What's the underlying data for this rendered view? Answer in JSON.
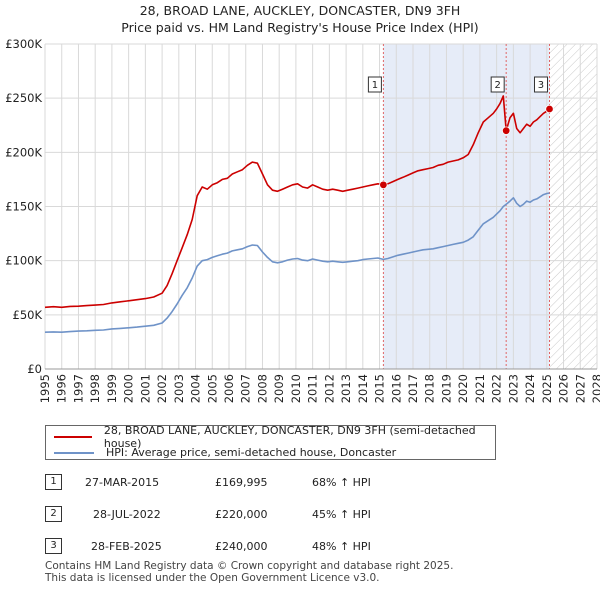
{
  "chart_data": {
    "type": "line",
    "title": "28, BROAD LANE, AUCKLEY, DONCASTER, DN9 3FH",
    "subtitle": "Price paid vs. HM Land Registry's House Price Index (HPI)",
    "xlabel": "",
    "ylabel": "",
    "xlim": [
      1995,
      2028
    ],
    "ylim": [
      0,
      300000
    ],
    "x_ticks": [
      1995,
      1996,
      1997,
      1998,
      1999,
      2000,
      2001,
      2002,
      2003,
      2004,
      2005,
      2006,
      2007,
      2008,
      2009,
      2010,
      2011,
      2012,
      2013,
      2014,
      2015,
      2016,
      2017,
      2018,
      2019,
      2020,
      2021,
      2022,
      2023,
      2024,
      2025,
      2026,
      2027,
      2028
    ],
    "x_tick_labels": [
      "1995",
      "1996",
      "1997",
      "1998",
      "1999",
      "2000",
      "2001",
      "2002",
      "2003",
      "2004",
      "2005",
      "2006",
      "2007",
      "2008",
      "2009",
      "2010",
      "2011",
      "2012",
      "2013",
      "2014",
      "2015",
      "2016",
      "2017",
      "2018",
      "2019",
      "2020",
      "2021",
      "2022",
      "2023",
      "2024",
      "2025",
      "2026",
      "2027",
      "2028"
    ],
    "y_ticks": [
      0,
      50000,
      100000,
      150000,
      200000,
      250000,
      300000
    ],
    "y_tick_labels": [
      "£0",
      "£50K",
      "£100K",
      "£150K",
      "£200K",
      "£250K",
      "£300K"
    ],
    "grid": true,
    "projection_start": 2025.17,
    "series": [
      {
        "name": "28, BROAD LANE, AUCKLEY, DONCASTER, DN9 3FH (semi-detached house)",
        "color": "#cc0000",
        "x": [
          1995.0,
          1995.5,
          1996.0,
          1996.5,
          1997.0,
          1997.5,
          1998.0,
          1998.5,
          1999.0,
          1999.5,
          2000.0,
          2000.5,
          2001.0,
          2001.5,
          2002.0,
          2002.3,
          2002.6,
          2002.9,
          2003.2,
          2003.5,
          2003.8,
          2004.1,
          2004.4,
          2004.7,
          2005.0,
          2005.3,
          2005.6,
          2005.9,
          2006.2,
          2006.5,
          2006.8,
          2007.1,
          2007.4,
          2007.7,
          2008.0,
          2008.3,
          2008.6,
          2008.9,
          2009.2,
          2009.5,
          2009.8,
          2010.1,
          2010.4,
          2010.7,
          2011.0,
          2011.3,
          2011.6,
          2011.9,
          2012.2,
          2012.5,
          2012.8,
          2013.1,
          2013.4,
          2013.7,
          2014.0,
          2014.3,
          2014.6,
          2014.9,
          2015.23,
          2015.5,
          2015.8,
          2016.1,
          2016.4,
          2016.7,
          2017.0,
          2017.3,
          2017.6,
          2017.9,
          2018.2,
          2018.5,
          2018.8,
          2019.1,
          2019.4,
          2019.7,
          2020.0,
          2020.3,
          2020.6,
          2020.9,
          2021.2,
          2021.5,
          2021.8,
          2022.0,
          2022.2,
          2022.4,
          2022.57,
          2022.8,
          2023.0,
          2023.2,
          2023.4,
          2023.6,
          2023.8,
          2024.0,
          2024.2,
          2024.4,
          2024.6,
          2024.8,
          2025.0,
          2025.16
        ],
        "values": [
          57000,
          57500,
          57000,
          57800,
          58000,
          58500,
          59000,
          59500,
          61000,
          62000,
          63000,
          64000,
          65000,
          66500,
          70000,
          77000,
          88000,
          100000,
          112000,
          124000,
          138000,
          160000,
          168000,
          166000,
          170000,
          172000,
          175000,
          176000,
          180000,
          182000,
          184000,
          188000,
          191000,
          190000,
          180000,
          170000,
          165000,
          164000,
          166000,
          168000,
          170000,
          171000,
          168000,
          167000,
          170000,
          168000,
          166000,
          165000,
          166000,
          165000,
          164000,
          165000,
          166000,
          167000,
          168000,
          169000,
          170000,
          171000,
          169995,
          171000,
          173000,
          175000,
          177000,
          179000,
          181000,
          183000,
          184000,
          185000,
          186000,
          188000,
          189000,
          191000,
          192000,
          193000,
          195000,
          198000,
          207000,
          218000,
          228000,
          232000,
          236000,
          240000,
          245000,
          252000,
          220000,
          232000,
          236000,
          222000,
          218000,
          222000,
          226000,
          224000,
          228000,
          230000,
          233000,
          236000,
          238000,
          240000
        ]
      },
      {
        "name": "HPI: Average price, semi-detached house, Doncaster",
        "color": "#6f93c8",
        "x": [
          1995.0,
          1995.5,
          1996.0,
          1996.5,
          1997.0,
          1997.5,
          1998.0,
          1998.5,
          1999.0,
          1999.5,
          2000.0,
          2000.5,
          2001.0,
          2001.5,
          2002.0,
          2002.3,
          2002.6,
          2002.9,
          2003.2,
          2003.5,
          2003.8,
          2004.1,
          2004.4,
          2004.7,
          2005.0,
          2005.3,
          2005.6,
          2005.9,
          2006.2,
          2006.5,
          2006.8,
          2007.1,
          2007.4,
          2007.7,
          2008.0,
          2008.3,
          2008.6,
          2008.9,
          2009.2,
          2009.5,
          2009.8,
          2010.1,
          2010.4,
          2010.7,
          2011.0,
          2011.3,
          2011.6,
          2011.9,
          2012.2,
          2012.5,
          2012.8,
          2013.1,
          2013.4,
          2013.7,
          2014.0,
          2014.3,
          2014.6,
          2014.9,
          2015.23,
          2015.5,
          2015.8,
          2016.1,
          2016.4,
          2016.7,
          2017.0,
          2017.3,
          2017.6,
          2017.9,
          2018.2,
          2018.5,
          2018.8,
          2019.1,
          2019.4,
          2019.7,
          2020.0,
          2020.3,
          2020.6,
          2020.9,
          2021.2,
          2021.5,
          2021.8,
          2022.0,
          2022.2,
          2022.4,
          2022.57,
          2022.8,
          2023.0,
          2023.2,
          2023.4,
          2023.6,
          2023.8,
          2024.0,
          2024.2,
          2024.4,
          2024.6,
          2024.8,
          2025.0,
          2025.16
        ],
        "values": [
          34000,
          34200,
          34000,
          34500,
          35000,
          35300,
          35700,
          36000,
          37000,
          37500,
          38000,
          38700,
          39500,
          40300,
          42500,
          47000,
          53000,
          60000,
          68000,
          75000,
          84000,
          95000,
          100000,
          101000,
          103000,
          104500,
          106000,
          107000,
          109000,
          110000,
          111000,
          113000,
          114500,
          114000,
          108000,
          103000,
          99000,
          98000,
          99000,
          100500,
          101500,
          102000,
          100500,
          100000,
          101500,
          100500,
          99500,
          99000,
          99500,
          99000,
          98500,
          99000,
          99500,
          100000,
          101000,
          101500,
          102000,
          102500,
          101200,
          102000,
          103500,
          105000,
          106000,
          107000,
          108000,
          109000,
          110000,
          110500,
          111000,
          112000,
          113000,
          114000,
          115000,
          116000,
          117000,
          119000,
          122000,
          128000,
          134000,
          137000,
          140000,
          143000,
          146000,
          150000,
          152000,
          155000,
          158000,
          153000,
          150000,
          152000,
          155000,
          154000,
          156000,
          157000,
          159000,
          161000,
          162000,
          162500
        ]
      }
    ],
    "sales": [
      {
        "label": "1",
        "date": "27-MAR-2015",
        "x": 2015.23,
        "price": "£169,995",
        "value": 169995,
        "hpi_change": "68% ↑ HPI"
      },
      {
        "label": "2",
        "date": "28-JUL-2022",
        "x": 2022.57,
        "price": "£220,000",
        "value": 220000,
        "hpi_change": "45% ↑ HPI"
      },
      {
        "label": "3",
        "date": "28-FEB-2025",
        "x": 2025.16,
        "price": "£240,000",
        "value": 240000,
        "hpi_change": "48% ↑ HPI"
      }
    ]
  },
  "legend": {
    "property_label": "28, BROAD LANE, AUCKLEY, DONCASTER, DN9 3FH (semi-detached house)",
    "hpi_label": "HPI: Average price, semi-detached house, Doncaster"
  },
  "footer": {
    "line1": "Contains HM Land Registry data © Crown copyright and database right 2025.",
    "line2": "This data is licensed under the Open Government Licence v3.0."
  }
}
